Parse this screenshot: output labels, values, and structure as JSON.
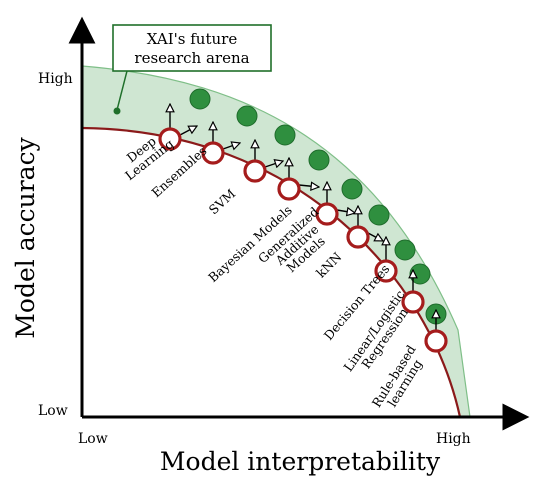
{
  "callout": {
    "line1": "XAI's future",
    "line2": "research arena"
  },
  "axes": {
    "y_title": "Model accuracy",
    "x_title": "Model interpretability",
    "y_high": "High",
    "y_low": "Low",
    "x_low": "Low",
    "x_high": "High"
  },
  "methods": [
    {
      "lines": [
        "Deep",
        "Learning"
      ]
    },
    {
      "lines": [
        "Ensembles"
      ]
    },
    {
      "lines": [
        "SVM"
      ]
    },
    {
      "lines": [
        "Bayesian Models"
      ]
    },
    {
      "lines": [
        "Generalized",
        "Additive",
        "Models"
      ]
    },
    {
      "lines": [
        "kNN"
      ]
    },
    {
      "lines": [
        "Decision Trees"
      ]
    },
    {
      "lines": [
        "Linear/Logistic",
        "Regression"
      ]
    },
    {
      "lines": [
        "Rule-based",
        "learning"
      ]
    }
  ],
  "colors": {
    "band_fill": "#cfe6d2",
    "band_edge": "#7fbf88",
    "current_curve": "#8b1a1a",
    "current_marker_stroke": "#a51c1c",
    "future_marker": "#2f8f3f",
    "callout_border": "#1f6f2a",
    "axis": "#000000"
  }
}
